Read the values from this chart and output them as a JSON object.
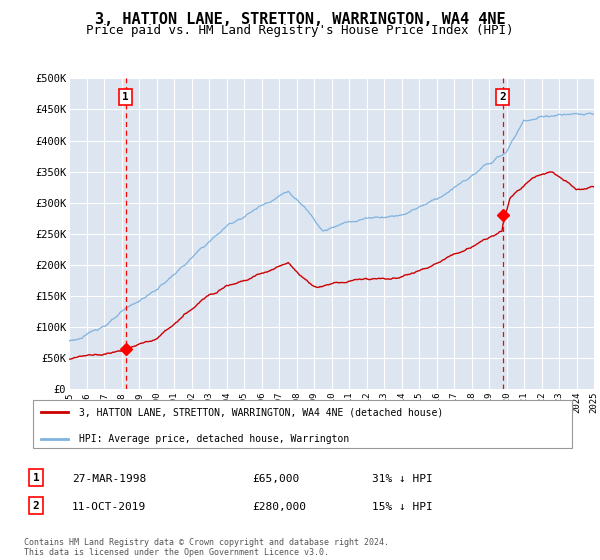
{
  "title": "3, HATTON LANE, STRETTON, WARRINGTON, WA4 4NE",
  "subtitle": "Price paid vs. HM Land Registry's House Price Index (HPI)",
  "title_fontsize": 11,
  "subtitle_fontsize": 9,
  "bg_color": "#dde5f0",
  "grid_color": "#ffffff",
  "ylim": [
    0,
    500000
  ],
  "yticks": [
    0,
    50000,
    100000,
    150000,
    200000,
    250000,
    300000,
    350000,
    400000,
    450000,
    500000
  ],
  "ytick_labels": [
    "£0",
    "£50K",
    "£100K",
    "£150K",
    "£200K",
    "£250K",
    "£300K",
    "£350K",
    "£400K",
    "£450K",
    "£500K"
  ],
  "x_start_year": 1995,
  "x_end_year": 2025,
  "marker1_year": 1998.23,
  "marker1_price": 65000,
  "marker1_text": "27-MAR-1998",
  "marker1_pct": "31% ↓ HPI",
  "marker2_year": 2019.78,
  "marker2_price": 280000,
  "marker2_text": "11-OCT-2019",
  "marker2_pct": "15% ↓ HPI",
  "legend_label_red": "3, HATTON LANE, STRETTON, WARRINGTON, WA4 4NE (detached house)",
  "legend_label_blue": "HPI: Average price, detached house, Warrington",
  "footer": "Contains HM Land Registry data © Crown copyright and database right 2024.\nThis data is licensed under the Open Government Licence v3.0.",
  "hpi_color": "#7fb3e0",
  "price_color": "#cc0000"
}
